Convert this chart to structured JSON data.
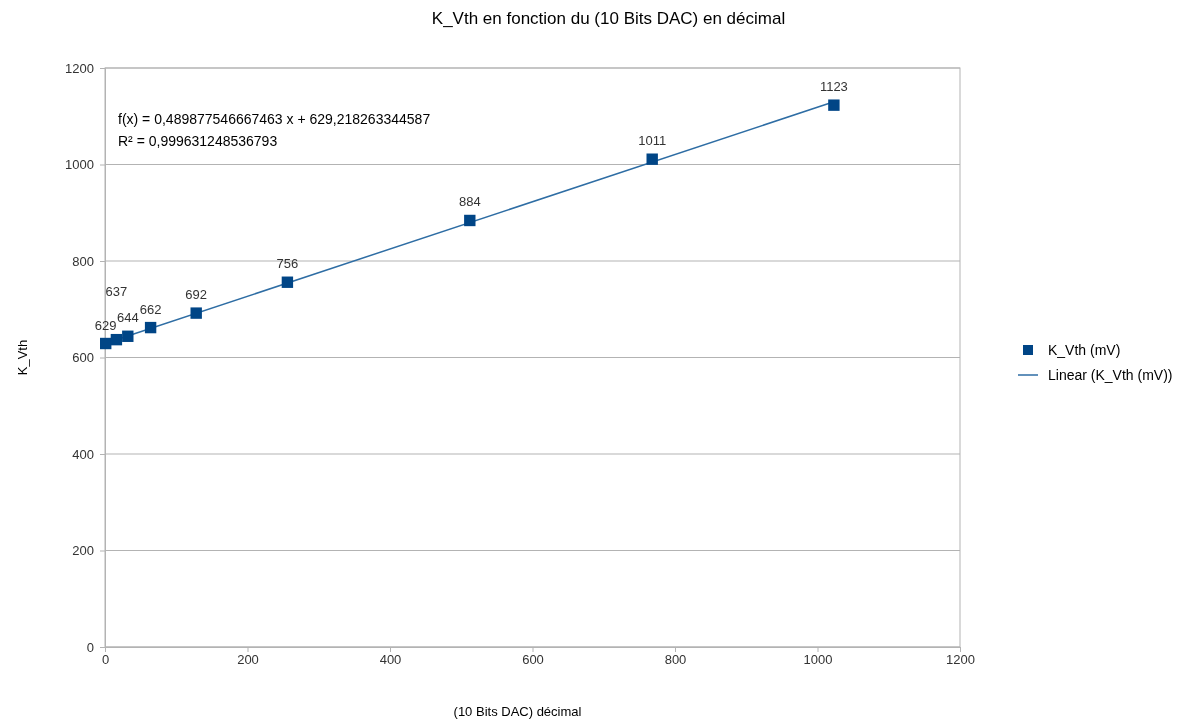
{
  "chart_data": {
    "type": "scatter",
    "title": "K_Vth en fonction du (10 Bits DAC) en décimal",
    "xlabel": "(10 Bits DAC) décimal",
    "ylabel": "K_Vth",
    "xlim": [
      0,
      1200
    ],
    "xticks": [
      0,
      200,
      400,
      600,
      800,
      1000,
      1200
    ],
    "ylim": [
      0,
      1200
    ],
    "yticks": [
      0,
      200,
      400,
      600,
      800,
      1000,
      1200
    ],
    "grid": "y",
    "legend": "right",
    "annotations": [
      "f(x) = 0,489877546667463 x + 629,218263344587",
      "R² = 0,999631248536793"
    ],
    "series": [
      {
        "name": "K_Vth (mV)",
        "marker": "square",
        "color": "#004586",
        "x": [
          1,
          16,
          32,
          64,
          128,
          256,
          512,
          768,
          1023
        ],
        "values": [
          629,
          637,
          644,
          662,
          692,
          756,
          884,
          1011,
          1123
        ],
        "value_labels": [
          "629",
          "637",
          "644",
          "662",
          "692",
          "756",
          "884",
          "1011",
          "1123"
        ]
      },
      {
        "name": "Linear (K_Vth (mV))",
        "type": "line",
        "marker": "none",
        "color": "#2e6da4",
        "x": [
          0,
          1023
        ],
        "values": [
          629,
          1130
        ]
      }
    ]
  }
}
